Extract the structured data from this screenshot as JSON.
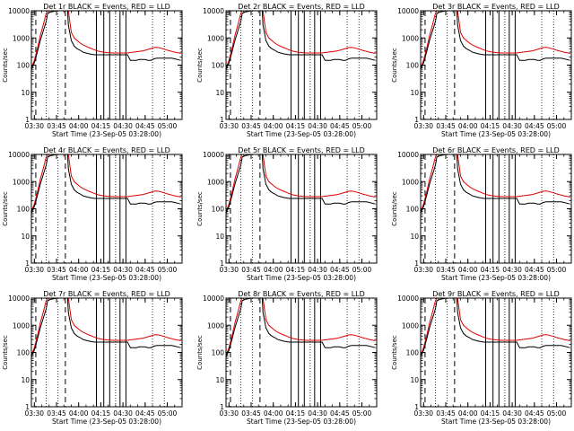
{
  "chart_data": {
    "type": "line",
    "grid": {
      "rows": 3,
      "cols": 3
    },
    "ylabel": "Counts/sec",
    "xlabel": "Start Time (23-Sep-05 03:28:00)",
    "ylog": true,
    "ylim": [
      1,
      10000
    ],
    "xlim_minutes_after_0328": [
      0,
      102
    ],
    "xticks": [
      "03:30",
      "03:45",
      "04:00",
      "04:15",
      "04:30",
      "04:45",
      "05:00"
    ],
    "xtick_minutes_after_0328": [
      2,
      17,
      32,
      47,
      62,
      77,
      92
    ],
    "yticks": [
      1,
      10,
      100,
      1000,
      10000
    ],
    "ytick_labels": [
      "1",
      "10",
      "100",
      "1000",
      "10000"
    ],
    "dotted_vlines_minutes_after_0328": [
      10,
      18,
      57,
      82,
      90
    ],
    "dashed_vlines_minutes_after_0328": [
      3,
      23
    ],
    "solid_vlines_minutes_after_0328": [
      44,
      49,
      53,
      60,
      64
    ],
    "series_colors": {
      "events": "#000000",
      "lld": "#dd0000"
    },
    "panels": [
      {
        "title": "Det 1r BLACK = Events, RED = LLD"
      },
      {
        "title": "Det 2r BLACK = Events, RED = LLD"
      },
      {
        "title": "Det 3r BLACK = Events, RED = LLD"
      },
      {
        "title": "Det 4r BLACK = Events, RED = LLD"
      },
      {
        "title": "Det 5r BLACK = Events, RED = LLD"
      },
      {
        "title": "Det 6r BLACK = Events, RED = LLD"
      },
      {
        "title": "Det 7r BLACK = Events, RED = LLD"
      },
      {
        "title": "Det 8r BLACK = Events, RED = LLD"
      },
      {
        "title": "Det 9r BLACK = Events, RED = LLD"
      }
    ],
    "series": [
      {
        "name": "LLD",
        "x": [
          0,
          2,
          4,
          6,
          8,
          10,
          11,
          13,
          15,
          17,
          19,
          21,
          23,
          24,
          24.5,
          25,
          27,
          29,
          31,
          33,
          35,
          37,
          39,
          41,
          43,
          45,
          47,
          49,
          51,
          53,
          55,
          57,
          59,
          61,
          63,
          65,
          67,
          69,
          71,
          73,
          75,
          77,
          79,
          81,
          83,
          85,
          87,
          89,
          91,
          93,
          95,
          97,
          99,
          101
        ],
        "values": [
          80,
          150,
          400,
          1200,
          3000,
          8000,
          12000,
          12000,
          12000,
          12000,
          12000,
          12000,
          12000,
          12000,
          12000,
          10000,
          1600,
          1000,
          800,
          650,
          560,
          490,
          440,
          400,
          360,
          330,
          310,
          300,
          290,
          285,
          280,
          280,
          280,
          280,
          280,
          280,
          290,
          300,
          310,
          320,
          330,
          350,
          380,
          410,
          440,
          450,
          430,
          400,
          370,
          340,
          320,
          300,
          285,
          270
        ]
      },
      {
        "name": "Events",
        "x": [
          0,
          2,
          4,
          6,
          8,
          10,
          11,
          13,
          15,
          17,
          19,
          21,
          23,
          24,
          24.5,
          25,
          27,
          29,
          31,
          33,
          35,
          37,
          39,
          41,
          43,
          45,
          47,
          49,
          51,
          53,
          55,
          57,
          59,
          61,
          63,
          65,
          67,
          69,
          71,
          73,
          75,
          77,
          79,
          81,
          83,
          85,
          87,
          89,
          91,
          93,
          95,
          97,
          99,
          101
        ],
        "values": [
          70,
          120,
          300,
          800,
          1800,
          4000,
          8000,
          9000,
          9500,
          10000,
          10000,
          10000,
          10000,
          10000,
          10000,
          3000,
          800,
          500,
          400,
          350,
          300,
          280,
          260,
          250,
          240,
          240,
          240,
          240,
          240,
          240,
          240,
          240,
          240,
          240,
          240,
          240,
          150,
          150,
          150,
          160,
          160,
          160,
          150,
          150,
          170,
          180,
          180,
          180,
          180,
          180,
          180,
          170,
          160,
          150
        ]
      }
    ]
  }
}
